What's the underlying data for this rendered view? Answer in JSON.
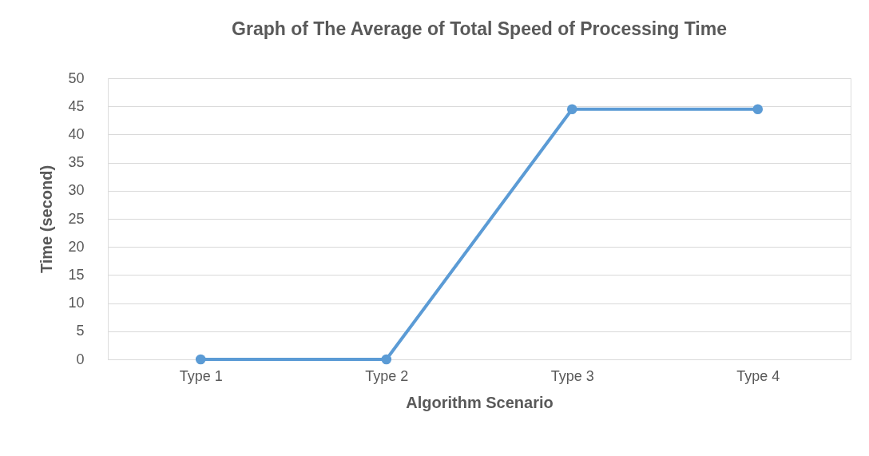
{
  "chart_data": {
    "type": "line",
    "title": "Graph of The Average of Total Speed of Processing Time",
    "xlabel": "Algorithm Scenario",
    "ylabel": "Time (second)",
    "categories": [
      "Type 1",
      "Type 2",
      "Type 3",
      "Type 4"
    ],
    "series": [
      {
        "color": "#5b9bd5",
        "values": [
          0,
          0,
          44.5,
          44.5
        ]
      }
    ],
    "ylim": [
      0,
      50
    ],
    "yticks": [
      0,
      5,
      10,
      15,
      20,
      25,
      30,
      35,
      40,
      45,
      50
    ],
    "grid": "y",
    "marker": "circle",
    "line_style": "solid"
  }
}
